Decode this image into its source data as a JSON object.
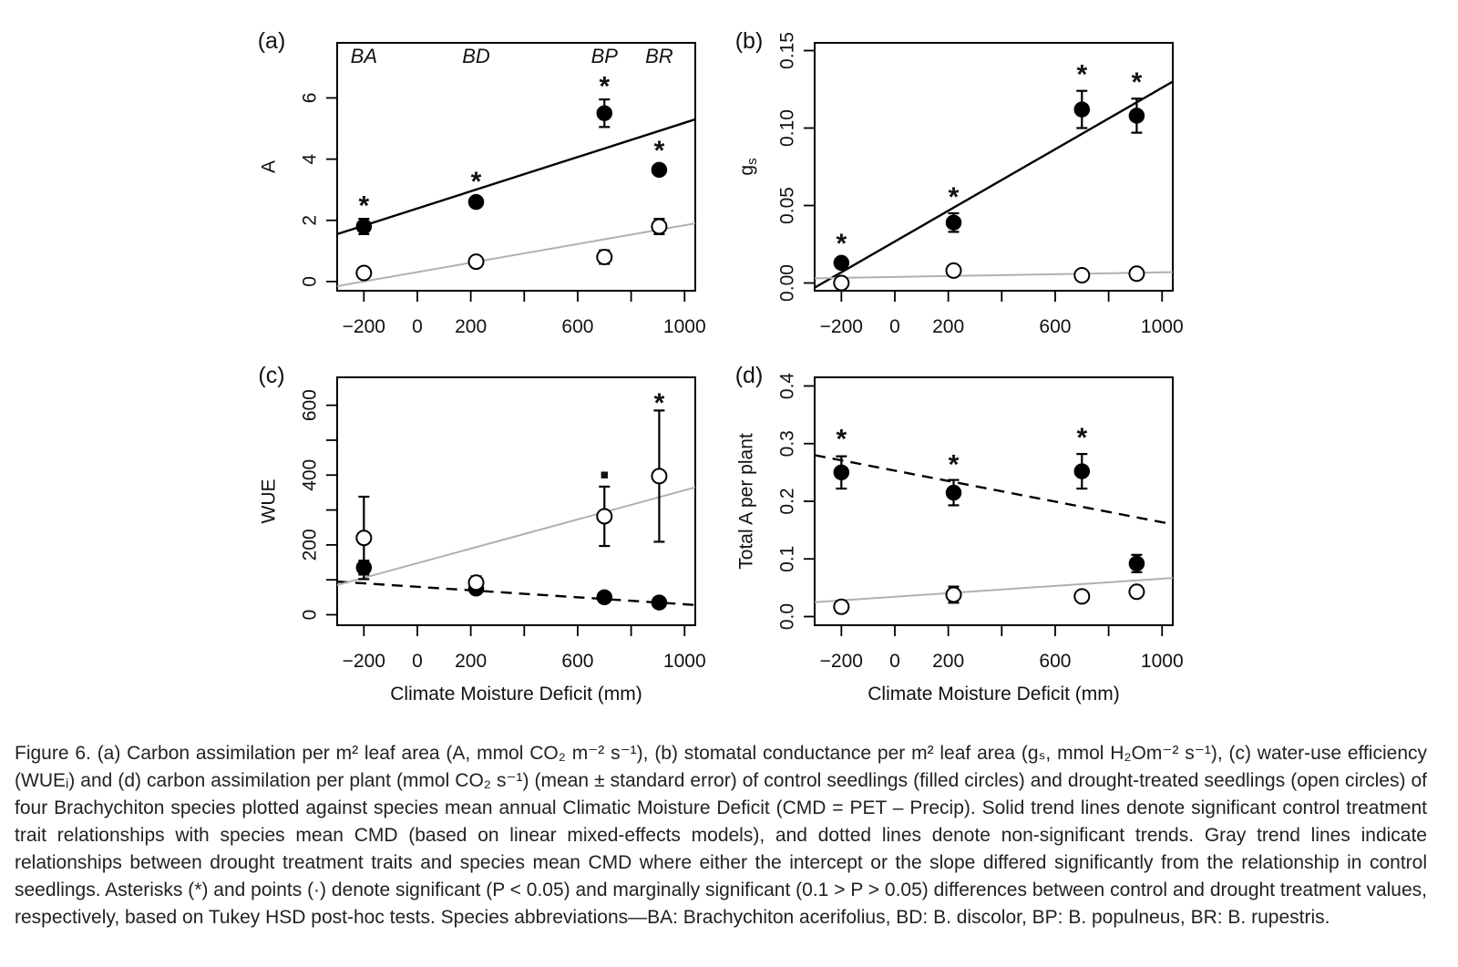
{
  "chart_data": [
    {
      "id": "a",
      "type": "scatter",
      "panel_label": "(a)",
      "ylabel": "A",
      "xlabel": "",
      "xlim": [
        -300,
        1040
      ],
      "ylim": [
        -0.3,
        7.8
      ],
      "xticks": [
        -200,
        0,
        200,
        400,
        600,
        800,
        1000
      ],
      "xtick_labels": [
        "−200",
        "0",
        "200",
        "",
        "600",
        "",
        "1000"
      ],
      "yticks": [
        0,
        2,
        4,
        6
      ],
      "ytick_labels": [
        "0",
        "2",
        "4",
        "6"
      ],
      "species_labels": [
        {
          "text": "BA",
          "x": -200
        },
        {
          "text": "BD",
          "x": 220
        },
        {
          "text": "BP",
          "x": 700
        },
        {
          "text": "BR",
          "x": 905
        }
      ],
      "series": [
        {
          "name": "control",
          "marker": "filled",
          "points": [
            {
              "x": -200,
              "y": 1.8,
              "err": 0.25
            },
            {
              "x": 220,
              "y": 2.6,
              "err": 0.1
            },
            {
              "x": 700,
              "y": 5.5,
              "err": 0.45
            },
            {
              "x": 905,
              "y": 3.65,
              "err": 0.1
            }
          ]
        },
        {
          "name": "drought",
          "marker": "open",
          "points": [
            {
              "x": -200,
              "y": 0.28,
              "err": 0.12
            },
            {
              "x": 220,
              "y": 0.65,
              "err": 0.15
            },
            {
              "x": 700,
              "y": 0.8,
              "err": 0.22
            },
            {
              "x": 905,
              "y": 1.8,
              "err": 0.25
            }
          ]
        }
      ],
      "trend_lines": [
        {
          "name": "control",
          "style": "solid",
          "color": "#000000",
          "x": [
            -300,
            1040
          ],
          "y": [
            1.55,
            5.3
          ]
        },
        {
          "name": "drought",
          "style": "solid",
          "color": "#b0b0b0",
          "x": [
            -300,
            1040
          ],
          "y": [
            -0.15,
            1.9
          ]
        }
      ],
      "annotations": [
        {
          "text": "*",
          "x": -200,
          "y": 2.6
        },
        {
          "text": "*",
          "x": 220,
          "y": 3.4
        },
        {
          "text": "*",
          "x": 700,
          "y": 6.5
        },
        {
          "text": "*",
          "x": 905,
          "y": 4.4
        }
      ]
    },
    {
      "id": "b",
      "type": "scatter",
      "panel_label": "(b)",
      "ylabel": "gs",
      "ylabel_main": "g",
      "ylabel_sub": "s",
      "xlabel": "",
      "xlim": [
        -300,
        1040
      ],
      "ylim": [
        -0.005,
        0.155
      ],
      "xticks": [
        -200,
        0,
        200,
        400,
        600,
        800,
        1000
      ],
      "xtick_labels": [
        "−200",
        "0",
        "200",
        "",
        "600",
        "",
        "1000"
      ],
      "yticks": [
        0.0,
        0.05,
        0.1,
        0.15
      ],
      "ytick_labels": [
        "0.00",
        "0.05",
        "0.10",
        "0.15"
      ],
      "series": [
        {
          "name": "control",
          "marker": "filled",
          "points": [
            {
              "x": -200,
              "y": 0.013,
              "err": 0.002
            },
            {
              "x": 220,
              "y": 0.039,
              "err": 0.006
            },
            {
              "x": 700,
              "y": 0.112,
              "err": 0.012
            },
            {
              "x": 905,
              "y": 0.108,
              "err": 0.011
            }
          ]
        },
        {
          "name": "drought",
          "marker": "open",
          "points": [
            {
              "x": -200,
              "y": 0.0,
              "err": 0.001
            },
            {
              "x": 220,
              "y": 0.008,
              "err": 0.002
            },
            {
              "x": 700,
              "y": 0.005,
              "err": 0.002
            },
            {
              "x": 905,
              "y": 0.006,
              "err": 0.002
            }
          ]
        }
      ],
      "trend_lines": [
        {
          "name": "control",
          "style": "solid",
          "color": "#000000",
          "x": [
            -300,
            1040
          ],
          "y": [
            -0.003,
            0.13
          ]
        },
        {
          "name": "drought",
          "style": "solid",
          "color": "#b0b0b0",
          "x": [
            -300,
            1040
          ],
          "y": [
            0.003,
            0.007
          ]
        }
      ],
      "annotations": [
        {
          "text": "*",
          "x": -200,
          "y": 0.028
        },
        {
          "text": "*",
          "x": 220,
          "y": 0.058
        },
        {
          "text": "*",
          "x": 700,
          "y": 0.137
        },
        {
          "text": "*",
          "x": 905,
          "y": 0.132
        }
      ]
    },
    {
      "id": "c",
      "type": "scatter",
      "panel_label": "(c)",
      "ylabel": "WUE",
      "xlabel": "Climate Moisture Deficit (mm)",
      "xlim": [
        -300,
        1040
      ],
      "ylim": [
        -30,
        680
      ],
      "xticks": [
        -200,
        0,
        200,
        400,
        600,
        800,
        1000
      ],
      "xtick_labels": [
        "−200",
        "0",
        "200",
        "",
        "600",
        "",
        "1000"
      ],
      "yticks": [
        0,
        100,
        200,
        300,
        400,
        500,
        600
      ],
      "ytick_labels": [
        "0",
        "",
        "200",
        "",
        "400",
        "",
        "600"
      ],
      "series": [
        {
          "name": "control",
          "marker": "filled",
          "points": [
            {
              "x": -200,
              "y": 135,
              "err": 20
            },
            {
              "x": 220,
              "y": 75,
              "err": 8
            },
            {
              "x": 700,
              "y": 50,
              "err": 6
            },
            {
              "x": 905,
              "y": 35,
              "err": 5
            }
          ]
        },
        {
          "name": "drought",
          "marker": "open",
          "points": [
            {
              "x": -200,
              "y": 220,
              "err": 118
            },
            {
              "x": 220,
              "y": 92,
              "err": 18
            },
            {
              "x": 700,
              "y": 282,
              "err": 85
            },
            {
              "x": 905,
              "y": 397,
              "err": 188
            }
          ]
        }
      ],
      "trend_lines": [
        {
          "name": "control",
          "style": "dashed",
          "color": "#000000",
          "x": [
            -300,
            1040
          ],
          "y": [
            95,
            28
          ]
        },
        {
          "name": "drought",
          "style": "solid",
          "color": "#b0b0b0",
          "x": [
            -300,
            1040
          ],
          "y": [
            85,
            365
          ]
        }
      ],
      "annotations": [
        {
          "text": "▪",
          "x": 700,
          "y": 412
        },
        {
          "text": "*",
          "x": 905,
          "y": 618
        }
      ]
    },
    {
      "id": "d",
      "type": "scatter",
      "panel_label": "(d)",
      "ylabel": "Total A per plant",
      "xlabel": "Climate Moisture Deficit (mm)",
      "xlim": [
        -300,
        1040
      ],
      "ylim": [
        -0.015,
        0.415
      ],
      "xticks": [
        -200,
        0,
        200,
        400,
        600,
        800,
        1000
      ],
      "xtick_labels": [
        "−200",
        "0",
        "200",
        "",
        "600",
        "",
        "1000"
      ],
      "yticks": [
        0.0,
        0.1,
        0.2,
        0.3,
        0.4
      ],
      "ytick_labels": [
        "0.0",
        "0.1",
        "0.2",
        "0.3",
        "0.4"
      ],
      "series": [
        {
          "name": "control",
          "marker": "filled",
          "points": [
            {
              "x": -200,
              "y": 0.25,
              "err": 0.028
            },
            {
              "x": 220,
              "y": 0.215,
              "err": 0.022
            },
            {
              "x": 700,
              "y": 0.252,
              "err": 0.03
            },
            {
              "x": 905,
              "y": 0.092,
              "err": 0.015
            }
          ]
        },
        {
          "name": "drought",
          "marker": "open",
          "points": [
            {
              "x": -200,
              "y": 0.017,
              "err": 0.01
            },
            {
              "x": 220,
              "y": 0.038,
              "err": 0.014
            },
            {
              "x": 700,
              "y": 0.035,
              "err": 0.008
            },
            {
              "x": 905,
              "y": 0.043,
              "err": 0.008
            }
          ]
        }
      ],
      "trend_lines": [
        {
          "name": "control",
          "style": "dashed",
          "color": "#000000",
          "x": [
            -300,
            1040
          ],
          "y": [
            0.28,
            0.16
          ]
        },
        {
          "name": "drought",
          "style": "solid",
          "color": "#b0b0b0",
          "x": [
            -300,
            1040
          ],
          "y": [
            0.025,
            0.067
          ]
        }
      ],
      "annotations": [
        {
          "text": "*",
          "x": -200,
          "y": 0.315
        },
        {
          "text": "*",
          "x": 220,
          "y": 0.27
        },
        {
          "text": "*",
          "x": 700,
          "y": 0.317
        }
      ]
    }
  ],
  "caption": {
    "prefix": "Figure 6.",
    "text": "(a) Carbon assimilation per m² leaf area (A, mmol CO₂ m⁻² s⁻¹), (b) stomatal conductance per m² leaf area (gₛ, mmol H₂Om⁻² s⁻¹), (c) water-use efficiency (WUEᵢ) and (d) carbon assimilation per plant (mmol CO₂ s⁻¹) (mean ± standard error) of control seedlings (filled circles) and drought-treated seedlings (open circles) of four Brachychiton species plotted against species mean annual Climatic Moisture Deficit (CMD = PET – Precip). Solid trend lines denote significant control treatment trait relationships with species mean CMD (based on linear mixed-effects models), and dotted lines denote non-significant trends. Gray trend lines indicate relationships between drought treatment traits and species mean CMD where either the intercept or the slope differed significantly from the relationship in control seedlings. Asterisks (*) and points (·) denote significant (P < 0.05) and marginally significant (0.1 > P > 0.05) differences between control and drought treatment values, respectively, based on Tukey HSD post-hoc tests. Species abbreviations—BA: Brachychiton acerifolius, BD: B. discolor, BP: B. populneus, BR: B. rupestris."
  }
}
